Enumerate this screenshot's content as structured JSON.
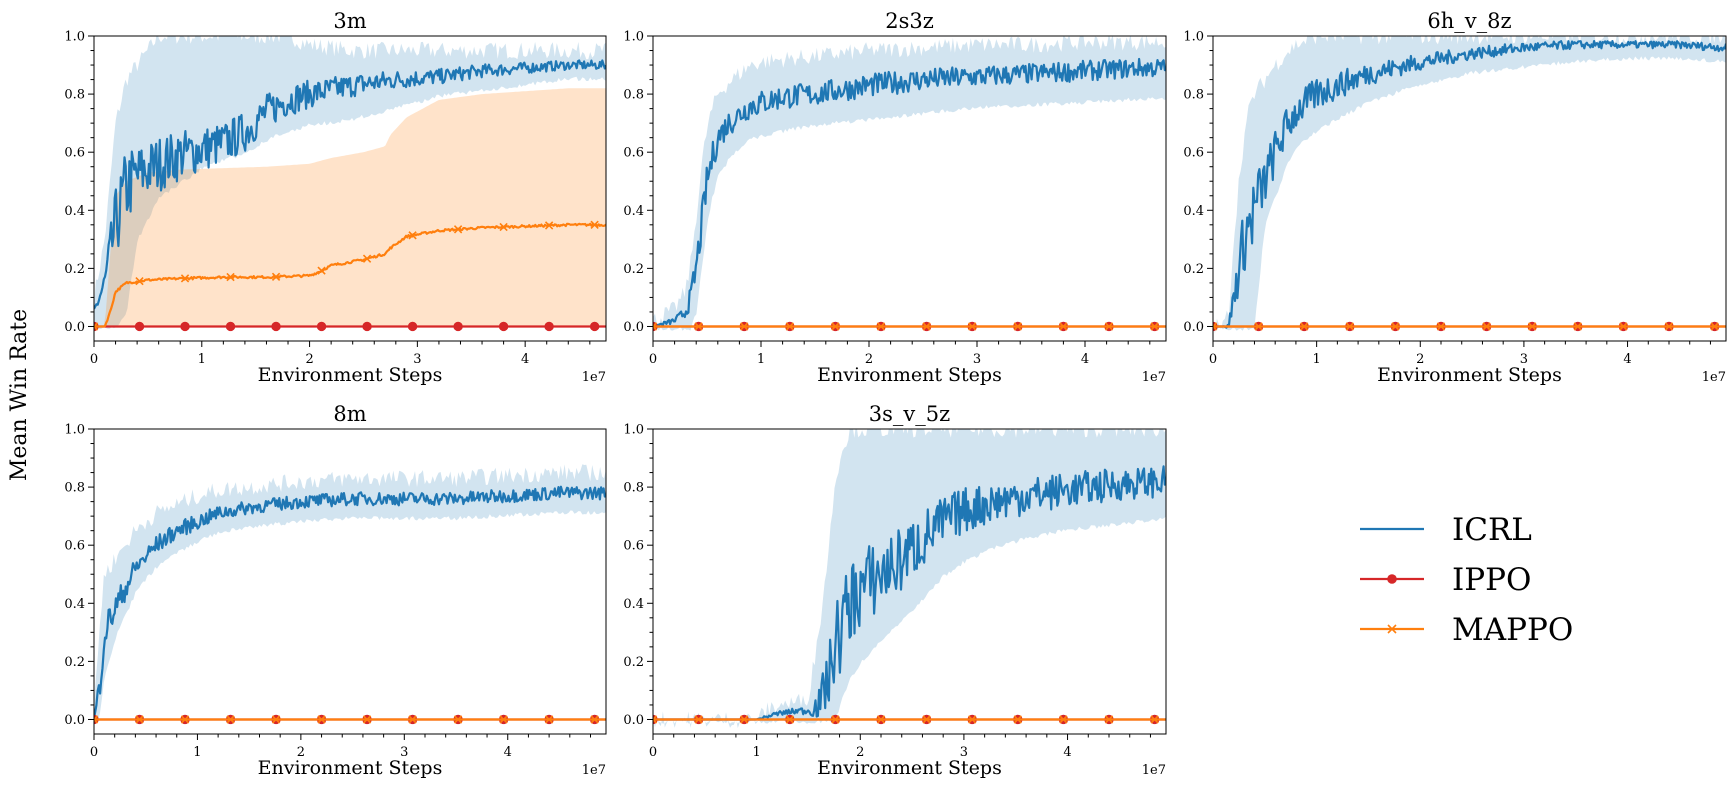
{
  "figure": {
    "ylabel": "Mean Win Rate"
  },
  "legend": {
    "entries": [
      {
        "name": "ICRL",
        "color": "#1f77b4",
        "marker": "none"
      },
      {
        "name": "IPPO",
        "color": "#d62728",
        "marker": "circle"
      },
      {
        "name": "MAPPO",
        "color": "#ff7f0e",
        "marker": "x"
      }
    ]
  },
  "chart_data": [
    {
      "type": "line",
      "title": "3m",
      "xlabel": "Environment Steps",
      "x_offset_label": "1e7",
      "xlim": [
        0,
        4.75
      ],
      "ylim": [
        -0.05,
        1.0
      ],
      "xticks": [
        0,
        1,
        2,
        3,
        4
      ],
      "yticks": [
        0.0,
        0.2,
        0.4,
        0.6,
        0.8,
        1.0
      ],
      "series": [
        {
          "name": "ICRL",
          "color": "#1f77b4",
          "marker": "none",
          "x": [
            0,
            0.1,
            0.2,
            0.3,
            0.4,
            0.6,
            0.8,
            1.0,
            1.2,
            1.4,
            1.6,
            1.8,
            2.0,
            2.4,
            2.8,
            3.2,
            3.6,
            4.0,
            4.4,
            4.75
          ],
          "y": [
            0.05,
            0.15,
            0.35,
            0.48,
            0.52,
            0.56,
            0.59,
            0.61,
            0.63,
            0.67,
            0.74,
            0.78,
            0.8,
            0.83,
            0.85,
            0.86,
            0.88,
            0.89,
            0.9,
            0.9
          ],
          "lower": [
            0.0,
            0.0,
            0.0,
            0.05,
            0.3,
            0.45,
            0.5,
            0.55,
            0.58,
            0.6,
            0.65,
            0.68,
            0.7,
            0.72,
            0.76,
            0.8,
            0.82,
            0.84,
            0.86,
            0.86
          ],
          "upper": [
            0.1,
            0.3,
            0.7,
            0.85,
            0.9,
            1.0,
            1.0,
            1.0,
            1.0,
            1.0,
            1.0,
            1.0,
            0.97,
            0.95,
            0.95,
            0.95,
            0.95,
            0.95,
            0.95,
            0.95
          ]
        },
        {
          "name": "IPPO",
          "color": "#d62728",
          "marker": "circle",
          "x": [
            0,
            4.75
          ],
          "y": [
            0.0,
            0.0
          ],
          "lower": [
            0.0,
            0.0
          ],
          "upper": [
            0.0,
            0.0
          ]
        },
        {
          "name": "MAPPO",
          "color": "#ff7f0e",
          "marker": "x",
          "x": [
            0,
            0.1,
            0.15,
            0.2,
            0.3,
            0.5,
            0.8,
            1.2,
            1.6,
            2.0,
            2.1,
            2.2,
            2.5,
            2.7,
            2.75,
            2.9,
            3.2,
            3.6,
            4.0,
            4.4,
            4.75
          ],
          "y": [
            0.0,
            0.0,
            0.05,
            0.12,
            0.15,
            0.16,
            0.165,
            0.17,
            0.17,
            0.175,
            0.19,
            0.21,
            0.23,
            0.25,
            0.27,
            0.31,
            0.33,
            0.34,
            0.345,
            0.35,
            0.35
          ],
          "lower": [
            0.0,
            0.0,
            0.0,
            0.0,
            0.0,
            0.0,
            0.0,
            0.0,
            0.0,
            0.0,
            0.0,
            0.0,
            0.0,
            0.0,
            0.0,
            0.0,
            0.0,
            0.0,
            0.0,
            0.0,
            0.0
          ],
          "upper": [
            0.0,
            0.0,
            0.25,
            0.45,
            0.5,
            0.53,
            0.54,
            0.545,
            0.55,
            0.56,
            0.57,
            0.58,
            0.6,
            0.62,
            0.66,
            0.72,
            0.78,
            0.8,
            0.81,
            0.82,
            0.82
          ]
        }
      ]
    },
    {
      "type": "line",
      "title": "2s3z",
      "xlabel": "Environment Steps",
      "x_offset_label": "1e7",
      "xlim": [
        0,
        4.75
      ],
      "ylim": [
        -0.05,
        1.0
      ],
      "xticks": [
        0,
        1,
        2,
        3,
        4
      ],
      "yticks": [
        0.0,
        0.2,
        0.4,
        0.6,
        0.8,
        1.0
      ],
      "series": [
        {
          "name": "ICRL",
          "color": "#1f77b4",
          "marker": "none",
          "x": [
            0,
            0.2,
            0.3,
            0.35,
            0.4,
            0.45,
            0.5,
            0.55,
            0.6,
            0.7,
            0.8,
            0.9,
            1.0,
            1.2,
            1.5,
            2.0,
            2.5,
            3.0,
            3.5,
            4.0,
            4.5,
            4.75
          ],
          "y": [
            0.0,
            0.02,
            0.05,
            0.1,
            0.2,
            0.35,
            0.5,
            0.58,
            0.65,
            0.7,
            0.73,
            0.76,
            0.77,
            0.79,
            0.8,
            0.83,
            0.85,
            0.86,
            0.87,
            0.88,
            0.89,
            0.89
          ],
          "lower": [
            0.0,
            0.0,
            0.0,
            0.0,
            0.05,
            0.2,
            0.35,
            0.45,
            0.52,
            0.58,
            0.62,
            0.65,
            0.66,
            0.68,
            0.7,
            0.72,
            0.74,
            0.76,
            0.77,
            0.78,
            0.79,
            0.79
          ],
          "upper": [
            0.02,
            0.06,
            0.12,
            0.22,
            0.38,
            0.55,
            0.68,
            0.75,
            0.8,
            0.84,
            0.87,
            0.9,
            0.91,
            0.92,
            0.93,
            0.95,
            0.96,
            0.97,
            0.97,
            0.98,
            0.98,
            0.98
          ]
        },
        {
          "name": "IPPO",
          "color": "#d62728",
          "marker": "circle",
          "x": [
            0,
            4.75
          ],
          "y": [
            0.0,
            0.0
          ],
          "lower": [
            0.0,
            0.0
          ],
          "upper": [
            0.0,
            0.0
          ]
        },
        {
          "name": "MAPPO",
          "color": "#ff7f0e",
          "marker": "x",
          "x": [
            0,
            4.75
          ],
          "y": [
            0.0,
            0.0
          ],
          "lower": [
            0.0,
            0.0
          ],
          "upper": [
            0.0,
            0.0
          ]
        }
      ]
    },
    {
      "type": "line",
      "title": "6h_v_8z",
      "xlabel": "Environment Steps",
      "x_offset_label": "1e7",
      "xlim": [
        0,
        4.95
      ],
      "ylim": [
        -0.05,
        1.0
      ],
      "xticks": [
        0,
        1,
        2,
        3,
        4
      ],
      "yticks": [
        0.0,
        0.2,
        0.4,
        0.6,
        0.8,
        1.0
      ],
      "series": [
        {
          "name": "ICRL",
          "color": "#1f77b4",
          "marker": "none",
          "x": [
            0,
            0.1,
            0.15,
            0.2,
            0.25,
            0.3,
            0.35,
            0.4,
            0.5,
            0.6,
            0.7,
            0.8,
            1.0,
            1.2,
            1.5,
            2.0,
            2.5,
            3.0,
            3.5,
            4.0,
            4.5,
            4.95
          ],
          "y": [
            0.0,
            0.0,
            0.0,
            0.1,
            0.2,
            0.3,
            0.35,
            0.4,
            0.5,
            0.6,
            0.68,
            0.74,
            0.8,
            0.83,
            0.87,
            0.91,
            0.94,
            0.96,
            0.97,
            0.97,
            0.97,
            0.96
          ],
          "lower": [
            0.0,
            0.0,
            0.0,
            0.0,
            0.0,
            0.0,
            0.0,
            0.0,
            0.35,
            0.45,
            0.55,
            0.62,
            0.68,
            0.72,
            0.78,
            0.84,
            0.88,
            0.9,
            0.92,
            0.93,
            0.93,
            0.92
          ],
          "upper": [
            0.0,
            0.0,
            0.05,
            0.3,
            0.5,
            0.65,
            0.75,
            0.8,
            0.85,
            0.9,
            0.94,
            0.97,
            1.0,
            1.0,
            1.0,
            1.0,
            1.0,
            1.0,
            1.0,
            1.0,
            1.0,
            1.0
          ]
        },
        {
          "name": "IPPO",
          "color": "#d62728",
          "marker": "circle",
          "x": [
            0,
            4.95
          ],
          "y": [
            0.0,
            0.0
          ],
          "lower": [
            0.0,
            0.0
          ],
          "upper": [
            0.0,
            0.0
          ]
        },
        {
          "name": "MAPPO",
          "color": "#ff7f0e",
          "marker": "x",
          "x": [
            0,
            4.95
          ],
          "y": [
            0.0,
            0.0
          ],
          "lower": [
            0.0,
            0.0
          ],
          "upper": [
            0.0,
            0.0
          ]
        }
      ]
    },
    {
      "type": "line",
      "title": "8m",
      "xlabel": "Environment Steps",
      "x_offset_label": "1e7",
      "xlim": [
        0,
        4.95
      ],
      "ylim": [
        -0.05,
        1.0
      ],
      "xticks": [
        0,
        1,
        2,
        3,
        4
      ],
      "yticks": [
        0.0,
        0.2,
        0.4,
        0.6,
        0.8,
        1.0
      ],
      "series": [
        {
          "name": "ICRL",
          "color": "#1f77b4",
          "marker": "none",
          "x": [
            0,
            0.05,
            0.1,
            0.2,
            0.3,
            0.4,
            0.5,
            0.6,
            0.8,
            1.0,
            1.2,
            1.5,
            2.0,
            2.5,
            3.0,
            3.5,
            4.0,
            4.5,
            4.95
          ],
          "y": [
            0.0,
            0.1,
            0.3,
            0.38,
            0.45,
            0.52,
            0.56,
            0.6,
            0.65,
            0.68,
            0.71,
            0.73,
            0.75,
            0.76,
            0.76,
            0.76,
            0.77,
            0.78,
            0.78
          ],
          "lower": [
            0.0,
            0.0,
            0.15,
            0.28,
            0.36,
            0.44,
            0.49,
            0.53,
            0.58,
            0.62,
            0.65,
            0.67,
            0.69,
            0.7,
            0.7,
            0.7,
            0.71,
            0.72,
            0.72
          ],
          "upper": [
            0.05,
            0.3,
            0.5,
            0.55,
            0.6,
            0.65,
            0.68,
            0.71,
            0.74,
            0.77,
            0.79,
            0.8,
            0.82,
            0.83,
            0.83,
            0.83,
            0.84,
            0.85,
            0.85
          ]
        },
        {
          "name": "IPPO",
          "color": "#d62728",
          "marker": "circle",
          "x": [
            0,
            4.95
          ],
          "y": [
            0.0,
            0.0
          ],
          "lower": [
            0.0,
            0.0
          ],
          "upper": [
            0.0,
            0.0
          ]
        },
        {
          "name": "MAPPO",
          "color": "#ff7f0e",
          "marker": "x",
          "x": [
            0,
            4.95
          ],
          "y": [
            0.0,
            0.0
          ],
          "lower": [
            0.0,
            0.0
          ],
          "upper": [
            0.0,
            0.0
          ]
        }
      ]
    },
    {
      "type": "line",
      "title": "3s_v_5z",
      "xlabel": "Environment Steps",
      "x_offset_label": "1e7",
      "xlim": [
        0,
        4.95
      ],
      "ylim": [
        -0.05,
        1.0
      ],
      "xticks": [
        0,
        1,
        2,
        3,
        4
      ],
      "yticks": [
        0.0,
        0.2,
        0.4,
        0.6,
        0.8,
        1.0
      ],
      "series": [
        {
          "name": "ICRL",
          "color": "#1f77b4",
          "marker": "none",
          "x": [
            0,
            1.0,
            1.1,
            1.2,
            1.4,
            1.5,
            1.6,
            1.7,
            1.75,
            1.8,
            1.85,
            1.9,
            2.0,
            2.2,
            2.4,
            2.6,
            2.8,
            3.0,
            3.3,
            3.6,
            4.0,
            4.5,
            4.95
          ],
          "y": [
            0.0,
            0.0,
            0.01,
            0.02,
            0.03,
            0.03,
            0.05,
            0.15,
            0.25,
            0.3,
            0.35,
            0.4,
            0.45,
            0.5,
            0.55,
            0.62,
            0.68,
            0.72,
            0.75,
            0.77,
            0.79,
            0.81,
            0.82
          ],
          "lower": [
            0.0,
            0.0,
            0.0,
            0.0,
            0.0,
            0.0,
            0.0,
            0.0,
            0.0,
            0.05,
            0.1,
            0.15,
            0.2,
            0.28,
            0.35,
            0.42,
            0.5,
            0.55,
            0.6,
            0.63,
            0.66,
            0.68,
            0.7
          ],
          "upper": [
            0.0,
            0.0,
            0.03,
            0.05,
            0.06,
            0.08,
            0.3,
            0.6,
            0.8,
            0.9,
            0.95,
            1.0,
            1.0,
            1.0,
            1.0,
            1.0,
            1.0,
            1.0,
            1.0,
            1.0,
            1.0,
            1.0,
            1.0
          ]
        },
        {
          "name": "IPPO",
          "color": "#d62728",
          "marker": "circle",
          "x": [
            0,
            4.95
          ],
          "y": [
            0.0,
            0.0
          ],
          "lower": [
            0.0,
            0.0
          ],
          "upper": [
            0.0,
            0.0
          ]
        },
        {
          "name": "MAPPO",
          "color": "#ff7f0e",
          "marker": "x",
          "x": [
            0,
            4.95
          ],
          "y": [
            0.0,
            0.0
          ],
          "lower": [
            0.0,
            0.0
          ],
          "upper": [
            0.0,
            0.0
          ]
        }
      ]
    }
  ]
}
